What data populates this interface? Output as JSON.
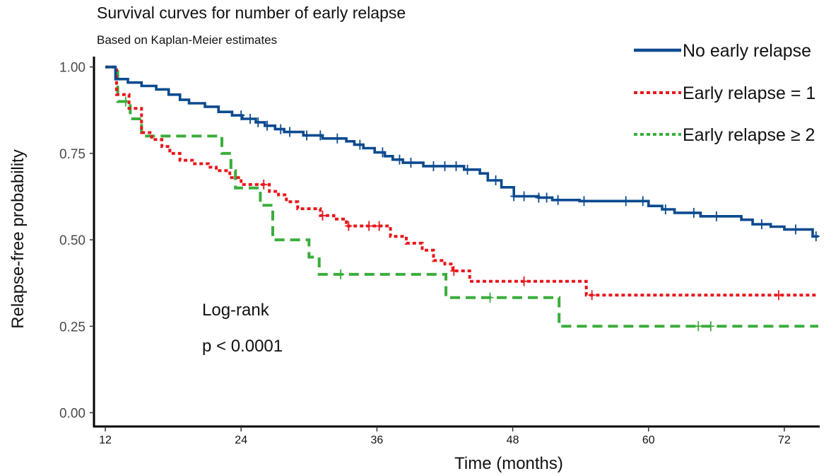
{
  "chart_data": {
    "type": "line",
    "title": "Survival curves for number of early relapse",
    "subtitle": "Based on Kaplan-Meier estimates",
    "xlabel": "Time (months)",
    "ylabel": "Relapse-free probability",
    "xlim": [
      11,
      75
    ],
    "ylim": [
      -0.04,
      1.03
    ],
    "xticks": [
      12,
      24,
      36,
      48,
      60,
      72
    ],
    "yticks": [
      0,
      0.25,
      0.5,
      0.75,
      1
    ],
    "xtick_labels": [
      "12",
      "24",
      "36",
      "48",
      "60",
      "72"
    ],
    "ytick_labels": [
      "0.00",
      "0.25",
      "0.50",
      "0.75",
      "1.00"
    ],
    "grid": false,
    "legend_position": "top-right",
    "annotations": [
      "Log-rank",
      "p < 0.0001"
    ],
    "series": [
      {
        "name": "No early relapse",
        "color": "#0b4a8f",
        "style": "solid",
        "steps": [
          [
            12,
            1.0
          ],
          [
            12.9,
            0.965
          ],
          [
            14,
            0.955
          ],
          [
            15.2,
            0.945
          ],
          [
            16.5,
            0.935
          ],
          [
            17.6,
            0.92
          ],
          [
            18.6,
            0.905
          ],
          [
            19.4,
            0.895
          ],
          [
            20.8,
            0.885
          ],
          [
            22,
            0.87
          ],
          [
            23.2,
            0.86
          ],
          [
            24.1,
            0.85
          ],
          [
            25.3,
            0.84
          ],
          [
            26.1,
            0.83
          ],
          [
            27,
            0.82
          ],
          [
            27.8,
            0.812
          ],
          [
            29.5,
            0.802
          ],
          [
            31.2,
            0.793
          ],
          [
            33.3,
            0.785
          ],
          [
            34,
            0.775
          ],
          [
            34.8,
            0.765
          ],
          [
            35.8,
            0.753
          ],
          [
            36.7,
            0.742
          ],
          [
            37.4,
            0.732
          ],
          [
            38.3,
            0.723
          ],
          [
            40.1,
            0.713
          ],
          [
            43.7,
            0.703
          ],
          [
            45.1,
            0.692
          ],
          [
            45.8,
            0.672
          ],
          [
            47,
            0.652
          ],
          [
            48.1,
            0.626
          ],
          [
            49.8,
            0.626
          ],
          [
            50.3,
            0.622
          ],
          [
            51.5,
            0.615
          ],
          [
            53.9,
            0.612
          ],
          [
            60,
            0.598
          ],
          [
            61.2,
            0.588
          ],
          [
            62.3,
            0.578
          ],
          [
            64.6,
            0.568
          ],
          [
            68.2,
            0.558
          ],
          [
            69.2,
            0.545
          ],
          [
            70.8,
            0.538
          ],
          [
            72,
            0.53
          ],
          [
            74.5,
            0.51
          ]
        ],
        "censor": [
          24,
          24.8,
          25.5,
          26.3,
          27.5,
          28.3,
          29.8,
          31,
          32.5,
          34.5,
          36.5,
          38,
          39,
          41,
          42,
          43,
          44,
          46.5,
          48.1,
          49,
          50.3,
          51,
          52,
          54.3,
          58,
          59.5,
          61.5,
          64,
          66,
          70,
          73,
          74.8
        ],
        "end_x": 75
      },
      {
        "name": "Early relapse = 1",
        "color": "#e8161b",
        "style": "dotted",
        "steps": [
          [
            12,
            1.0
          ],
          [
            13,
            0.92
          ],
          [
            14.1,
            0.88
          ],
          [
            15.2,
            0.81
          ],
          [
            16.1,
            0.79
          ],
          [
            17,
            0.77
          ],
          [
            17.7,
            0.75
          ],
          [
            18.6,
            0.73
          ],
          [
            19.7,
            0.72
          ],
          [
            21.1,
            0.71
          ],
          [
            21.8,
            0.7
          ],
          [
            23,
            0.68
          ],
          [
            24,
            0.66
          ],
          [
            26.5,
            0.64
          ],
          [
            27.3,
            0.63
          ],
          [
            28,
            0.61
          ],
          [
            29,
            0.59
          ],
          [
            31,
            0.57
          ],
          [
            32.2,
            0.56
          ],
          [
            33.3,
            0.54
          ],
          [
            37.2,
            0.51
          ],
          [
            38.6,
            0.49
          ],
          [
            40,
            0.47
          ],
          [
            41,
            0.44
          ],
          [
            42,
            0.43
          ],
          [
            42.7,
            0.41
          ],
          [
            44.2,
            0.38
          ],
          [
            54.5,
            0.34
          ]
        ],
        "censor": [
          26,
          31.2,
          33.5,
          35.3,
          36.2,
          42.8,
          49,
          55,
          71.5
        ],
        "end_x": 75
      },
      {
        "name": "Early relapse ≥ 2",
        "color": "#3aad3b",
        "style": "dashed",
        "steps": [
          [
            12,
            1.0
          ],
          [
            13.1,
            0.9
          ],
          [
            14.2,
            0.85
          ],
          [
            15.2,
            0.8
          ],
          [
            22.3,
            0.75
          ],
          [
            23.1,
            0.7
          ],
          [
            23.5,
            0.65
          ],
          [
            25.7,
            0.6
          ],
          [
            26.8,
            0.5
          ],
          [
            30,
            0.45
          ],
          [
            30.9,
            0.4
          ],
          [
            42.1,
            0.333
          ],
          [
            52.1,
            0.25
          ]
        ],
        "censor": [
          13.8,
          32.8,
          46,
          64.4,
          65.5
        ],
        "end_x": 75
      }
    ]
  }
}
